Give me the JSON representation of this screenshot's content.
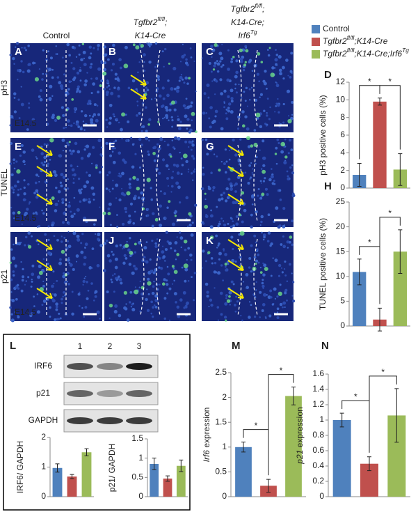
{
  "columns": [
    {
      "lines": [
        [
          {
            "text": "Control"
          }
        ]
      ]
    },
    {
      "lines": [
        [
          {
            "text": "Tgfbr2",
            "italic": true
          },
          {
            "text": "fl/fl",
            "italic": true,
            "sup": true
          },
          {
            "text": ";",
            "italic": true
          }
        ],
        [
          {
            "text": "K14-Cre",
            "italic": true
          }
        ]
      ]
    },
    {
      "lines": [
        [
          {
            "text": "Tgfbr2",
            "italic": true
          },
          {
            "text": "fl/fl",
            "italic": true,
            "sup": true
          },
          {
            "text": ";",
            "italic": true
          }
        ],
        [
          {
            "text": "K14-Cre;",
            "italic": true
          }
        ],
        [
          {
            "text": "Irf6",
            "italic": true
          },
          {
            "text": "Tg",
            "italic": true,
            "sup": true
          }
        ]
      ]
    }
  ],
  "rows": [
    "pH3",
    "TUNEL",
    "p21"
  ],
  "image_panels": [
    {
      "letter": "A",
      "stage": "E14.5"
    },
    {
      "letter": "B"
    },
    {
      "letter": "C"
    },
    {
      "letter": "E",
      "stage": "E14.5"
    },
    {
      "letter": "F"
    },
    {
      "letter": "G"
    },
    {
      "letter": "I",
      "stage": "E14.5"
    },
    {
      "letter": "J"
    },
    {
      "letter": "K"
    }
  ],
  "legend": [
    {
      "color": "#4f81bd",
      "parts": [
        {
          "text": "Control"
        }
      ]
    },
    {
      "color": "#c0504d",
      "parts": [
        {
          "text": "Tgfbr2",
          "italic": true
        },
        {
          "text": "fl/fl",
          "italic": true,
          "sup": true
        },
        {
          "text": ";K14-Cre",
          "italic": true
        }
      ]
    },
    {
      "color": "#9bbb59",
      "parts": [
        {
          "text": "Tgfbr2",
          "italic": true
        },
        {
          "text": "fl/fl",
          "italic": true,
          "sup": true
        },
        {
          "text": ";K14-Cre;Irf6",
          "italic": true
        },
        {
          "text": "Tg",
          "italic": true,
          "sup": true
        }
      ]
    }
  ],
  "western_blot": {
    "letter": "L",
    "lanes": [
      "1",
      "2",
      "3"
    ],
    "bands": [
      "IRF6",
      "p21",
      "GAPDH"
    ]
  },
  "chart_data": [
    {
      "type": "bar",
      "panel": "D",
      "ylabel": [
        {
          "text": "pH3 positive cells (%)"
        }
      ],
      "categories": [
        null,
        null,
        null
      ],
      "values": [
        1.5,
        9.8,
        2.1
      ],
      "errors": [
        1.3,
        0.4,
        1.8
      ],
      "colors": [
        "#4f81bd",
        "#c0504d",
        "#9bbb59"
      ],
      "ylim": [
        0,
        12
      ],
      "yticks": [
        0,
        2,
        4,
        6,
        8,
        10,
        12
      ],
      "comparisons": [
        {
          "label": "*",
          "pair": [
            0,
            1
          ]
        },
        {
          "label": "*",
          "pair": [
            1,
            2
          ]
        }
      ]
    },
    {
      "type": "bar",
      "panel": "H",
      "ylabel": [
        {
          "text": "TUNEL positive cells (%)"
        }
      ],
      "categories": [
        null,
        null,
        null
      ],
      "values": [
        10.9,
        1.3,
        15.0
      ],
      "errors": [
        2.6,
        2.3,
        4.4
      ],
      "colors": [
        "#4f81bd",
        "#c0504d",
        "#9bbb59"
      ],
      "ylim": [
        0,
        25
      ],
      "yticks": [
        0,
        5,
        10,
        15,
        20,
        25
      ],
      "comparisons": [
        {
          "label": "*",
          "pair": [
            0,
            1
          ]
        },
        {
          "label": "*",
          "pair": [
            1,
            2
          ]
        }
      ]
    },
    {
      "type": "bar",
      "ylabel": [
        {
          "text": "IRF6/ GAPDH"
        }
      ],
      "categories": [
        null,
        null,
        null
      ],
      "values": [
        0.97,
        0.68,
        1.5
      ],
      "errors": [
        0.14,
        0.07,
        0.12
      ],
      "colors": [
        "#4f81bd",
        "#c0504d",
        "#9bbb59"
      ],
      "ylim": [
        0,
        2
      ],
      "yticks": [
        0,
        1,
        2
      ]
    },
    {
      "type": "bar",
      "ylabel": [
        {
          "text": "p21/ GAPDH"
        }
      ],
      "categories": [
        null,
        null,
        null
      ],
      "values": [
        0.85,
        0.47,
        0.8
      ],
      "errors": [
        0.15,
        0.07,
        0.15
      ],
      "colors": [
        "#4f81bd",
        "#c0504d",
        "#9bbb59"
      ],
      "ylim": [
        0,
        1.5
      ],
      "yticks": [
        0,
        0.5,
        1,
        1.5
      ]
    },
    {
      "type": "bar",
      "panel": "M",
      "ylabel": [
        {
          "text": "Irf6",
          "italic": true
        },
        {
          "text": " expression"
        }
      ],
      "categories": [
        null,
        null,
        null
      ],
      "values": [
        1.0,
        0.22,
        2.03
      ],
      "errors": [
        0.1,
        0.13,
        0.18
      ],
      "colors": [
        "#4f81bd",
        "#c0504d",
        "#9bbb59"
      ],
      "ylim": [
        0,
        2.5
      ],
      "yticks": [
        0,
        0.5,
        1,
        1.5,
        2,
        2.5
      ],
      "comparisons": [
        {
          "label": "*",
          "pair": [
            0,
            1
          ]
        },
        {
          "label": "*",
          "pair": [
            1,
            2
          ]
        }
      ]
    },
    {
      "type": "bar",
      "panel": "N",
      "ylabel": [
        {
          "text": "p21",
          "italic": true
        },
        {
          "text": " expression"
        }
      ],
      "categories": [
        null,
        null,
        null
      ],
      "values": [
        1.0,
        0.43,
        1.06
      ],
      "errors": [
        0.09,
        0.09,
        0.35
      ],
      "colors": [
        "#4f81bd",
        "#c0504d",
        "#9bbb59"
      ],
      "ylim": [
        0,
        1.6
      ],
      "yticks": [
        0,
        0.2,
        0.4,
        0.6,
        0.8,
        1,
        1.2,
        1.4,
        1.6
      ],
      "comparisons": [
        {
          "label": "*",
          "pair": [
            0,
            1
          ]
        },
        {
          "label": "*",
          "pair": [
            1,
            2
          ]
        }
      ]
    }
  ]
}
